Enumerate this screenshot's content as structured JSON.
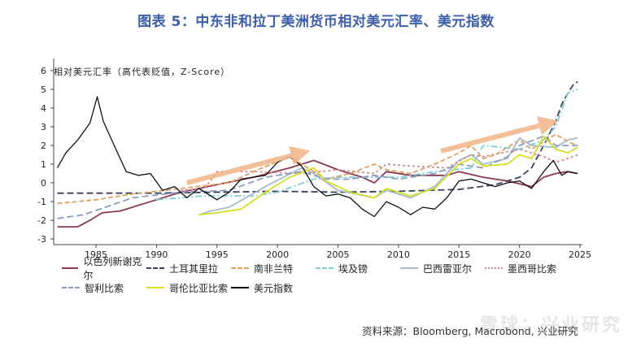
{
  "page": {
    "title": "图表 5：中东非和拉丁美洲货币相对美元汇率、美元指数",
    "source": "资料来源：Bloomberg, Macrobond, 兴业研究",
    "watermark": "雪球：兴业研究"
  },
  "chart_data": {
    "type": "line",
    "title": "图表 5：中东非和拉丁美洲货币相对美元汇率、美元指数",
    "ylabel": "相对美元汇率（高代表贬值，Z-Score）",
    "xlabel": "",
    "xlim": [
      1981.5,
      2025.2
    ],
    "ylim": [
      -3.3,
      6.3
    ],
    "xticks": [
      1985,
      1990,
      1995,
      2000,
      2005,
      2010,
      2015,
      2020,
      2025
    ],
    "yticks": [
      -3,
      -2,
      -1,
      0,
      1,
      2,
      3,
      4,
      5,
      6
    ],
    "legend_position": "bottom",
    "grid": false,
    "series": [
      {
        "name": "以色列新谢克尔",
        "color": "#8b3a52",
        "dash": "solid",
        "points": [
          [
            1981.8,
            -2.35
          ],
          [
            1983.5,
            -2.35
          ],
          [
            1984.5,
            -2.0
          ],
          [
            1985.5,
            -1.6
          ],
          [
            1987,
            -1.5
          ],
          [
            1990,
            -0.9
          ],
          [
            1992,
            -0.5
          ],
          [
            1995,
            -0.1
          ],
          [
            1998,
            0.3
          ],
          [
            2001,
            0.8
          ],
          [
            2003,
            1.2
          ],
          [
            2005,
            0.7
          ],
          [
            2007,
            0.3
          ],
          [
            2008,
            0.0
          ],
          [
            2009,
            0.6
          ],
          [
            2011,
            0.4
          ],
          [
            2014,
            0.4
          ],
          [
            2015,
            0.6
          ],
          [
            2017,
            0.3
          ],
          [
            2019,
            0.1
          ],
          [
            2021,
            -0.2
          ],
          [
            2022,
            0.3
          ],
          [
            2023,
            0.5
          ],
          [
            2024,
            0.6
          ],
          [
            2024.8,
            0.5
          ]
        ]
      },
      {
        "name": "土耳其里拉",
        "color": "#3a3f5c",
        "dash": "8,4",
        "points": [
          [
            1981.8,
            -0.55
          ],
          [
            1990,
            -0.55
          ],
          [
            1995,
            -0.5
          ],
          [
            2000,
            -0.45
          ],
          [
            2005,
            -0.5
          ],
          [
            2010,
            -0.45
          ],
          [
            2015,
            -0.35
          ],
          [
            2018,
            -0.1
          ],
          [
            2020,
            0.3
          ],
          [
            2021,
            0.8
          ],
          [
            2022,
            2.0
          ],
          [
            2023,
            3.3
          ],
          [
            2023.5,
            4.2
          ],
          [
            2024,
            4.8
          ],
          [
            2024.5,
            5.3
          ],
          [
            2024.8,
            5.4
          ]
        ]
      },
      {
        "name": "南非兰特",
        "color": "#e0a060",
        "dash": "6,3",
        "points": [
          [
            1981.8,
            -1.1
          ],
          [
            1985,
            -0.9
          ],
          [
            1988,
            -0.6
          ],
          [
            1992,
            -0.3
          ],
          [
            1996,
            0.0
          ],
          [
            1998,
            0.6
          ],
          [
            2001,
            1.4
          ],
          [
            2002,
            1.0
          ],
          [
            2004,
            0.2
          ],
          [
            2006,
            0.5
          ],
          [
            2008,
            1.0
          ],
          [
            2009,
            0.7
          ],
          [
            2011,
            0.5
          ],
          [
            2013,
            1.0
          ],
          [
            2015,
            1.6
          ],
          [
            2016,
            2.0
          ],
          [
            2017,
            1.3
          ],
          [
            2018,
            1.5
          ],
          [
            2020,
            2.3
          ],
          [
            2021,
            1.8
          ],
          [
            2023,
            2.6
          ],
          [
            2024,
            2.2
          ],
          [
            2024.8,
            2.0
          ]
        ]
      },
      {
        "name": "埃及镑",
        "color": "#7fcfd6",
        "dash": "8,3,2,3",
        "points": [
          [
            1990,
            -0.9
          ],
          [
            1994,
            -0.7
          ],
          [
            1998,
            -0.7
          ],
          [
            2000,
            -0.5
          ],
          [
            2003,
            0.2
          ],
          [
            2005,
            0.3
          ],
          [
            2010,
            0.3
          ],
          [
            2013,
            0.6
          ],
          [
            2016,
            0.8
          ],
          [
            2017,
            2.0
          ],
          [
            2020,
            1.8
          ],
          [
            2022,
            2.3
          ],
          [
            2023,
            3.0
          ],
          [
            2024,
            4.8
          ],
          [
            2024.8,
            5.0
          ]
        ]
      },
      {
        "name": "巴西雷亚尔",
        "color": "#a6bccc",
        "dash": "solid",
        "points": [
          [
            1993.5,
            -1.7
          ],
          [
            1994.5,
            -1.5
          ],
          [
            1996,
            -1.3
          ],
          [
            1999,
            -0.2
          ],
          [
            2002,
            0.8
          ],
          [
            2003,
            0.5
          ],
          [
            2005,
            -0.4
          ],
          [
            2008,
            -0.8
          ],
          [
            2009,
            -0.4
          ],
          [
            2011,
            -0.8
          ],
          [
            2013,
            -0.2
          ],
          [
            2015,
            1.2
          ],
          [
            2016,
            1.5
          ],
          [
            2017,
            1.0
          ],
          [
            2019,
            1.3
          ],
          [
            2020,
            2.4
          ],
          [
            2021,
            2.0
          ],
          [
            2023,
            1.9
          ],
          [
            2024,
            2.3
          ],
          [
            2024.8,
            2.4
          ]
        ]
      },
      {
        "name": "墨西哥比索",
        "color": "#d48c8c",
        "dash": "3,3",
        "points": [
          [
            1992,
            -0.4
          ],
          [
            1994,
            -0.3
          ],
          [
            1995,
            0.6
          ],
          [
            1998,
            0.6
          ],
          [
            2002,
            0.5
          ],
          [
            2005,
            0.7
          ],
          [
            2008,
            0.5
          ],
          [
            2009,
            1.0
          ],
          [
            2011,
            0.9
          ],
          [
            2014,
            0.8
          ],
          [
            2016,
            1.5
          ],
          [
            2017,
            1.4
          ],
          [
            2020,
            1.8
          ],
          [
            2022,
            1.4
          ],
          [
            2023,
            1.1
          ],
          [
            2024,
            1.3
          ],
          [
            2024.8,
            1.5
          ]
        ]
      },
      {
        "name": "智利比索",
        "color": "#8a9cc0",
        "dash": "8,4",
        "points": [
          [
            1981.8,
            -1.9
          ],
          [
            1984,
            -1.7
          ],
          [
            1988,
            -0.8
          ],
          [
            1992,
            -0.5
          ],
          [
            1996,
            -0.4
          ],
          [
            1999,
            0.3
          ],
          [
            2002,
            0.6
          ],
          [
            2004,
            0.2
          ],
          [
            2006,
            0.2
          ],
          [
            2008,
            0.4
          ],
          [
            2010,
            0.2
          ],
          [
            2013,
            0.5
          ],
          [
            2015,
            1.0
          ],
          [
            2017,
            0.8
          ],
          [
            2019,
            1.4
          ],
          [
            2020,
            2.0
          ],
          [
            2022,
            2.5
          ],
          [
            2023,
            2.0
          ],
          [
            2024,
            2.0
          ],
          [
            2024.8,
            2.0
          ]
        ]
      },
      {
        "name": "哥伦比亚比索",
        "color": "#d4e025",
        "dash": "solid",
        "points": [
          [
            1993.5,
            -1.7
          ],
          [
            1995,
            -1.6
          ],
          [
            1997,
            -1.4
          ],
          [
            1999,
            -0.5
          ],
          [
            2001,
            0.3
          ],
          [
            2003,
            0.8
          ],
          [
            2004,
            0.1
          ],
          [
            2006,
            -0.5
          ],
          [
            2008,
            -0.8
          ],
          [
            2009,
            -0.3
          ],
          [
            2011,
            -0.7
          ],
          [
            2013,
            -0.3
          ],
          [
            2015,
            1.0
          ],
          [
            2016,
            1.3
          ],
          [
            2017,
            0.9
          ],
          [
            2019,
            1.0
          ],
          [
            2020,
            1.5
          ],
          [
            2021,
            1.3
          ],
          [
            2022,
            2.5
          ],
          [
            2023,
            1.8
          ],
          [
            2024,
            1.6
          ],
          [
            2024.8,
            1.9
          ]
        ]
      },
      {
        "name": "美元指数",
        "color": "#111111",
        "dash": "solid",
        "points": [
          [
            1981.8,
            0.8
          ],
          [
            1982.5,
            1.6
          ],
          [
            1983.5,
            2.3
          ],
          [
            1984.5,
            3.2
          ],
          [
            1985.1,
            4.6
          ],
          [
            1985.6,
            3.3
          ],
          [
            1986.5,
            2.0
          ],
          [
            1987.5,
            0.6
          ],
          [
            1988.5,
            0.4
          ],
          [
            1989.5,
            0.5
          ],
          [
            1990.5,
            -0.4
          ],
          [
            1991.5,
            -0.2
          ],
          [
            1992.5,
            -0.8
          ],
          [
            1993.5,
            -0.3
          ],
          [
            1995,
            -0.9
          ],
          [
            1996,
            -0.5
          ],
          [
            1997,
            0.2
          ],
          [
            1998,
            0.3
          ],
          [
            1999,
            0.4
          ],
          [
            2000,
            1.1
          ],
          [
            2001,
            1.4
          ],
          [
            2002,
            0.9
          ],
          [
            2003,
            -0.2
          ],
          [
            2004,
            -0.7
          ],
          [
            2005,
            -0.6
          ],
          [
            2006,
            -0.8
          ],
          [
            2007,
            -1.4
          ],
          [
            2008,
            -1.8
          ],
          [
            2009,
            -1.0
          ],
          [
            2010,
            -1.3
          ],
          [
            2011,
            -1.7
          ],
          [
            2012,
            -1.3
          ],
          [
            2013,
            -1.4
          ],
          [
            2014,
            -0.8
          ],
          [
            2015,
            0.1
          ],
          [
            2016,
            0.2
          ],
          [
            2017,
            0.0
          ],
          [
            2018,
            -0.2
          ],
          [
            2019,
            0.0
          ],
          [
            2020,
            0.1
          ],
          [
            2021,
            -0.3
          ],
          [
            2022,
            0.6
          ],
          [
            2022.8,
            1.2
          ],
          [
            2023.5,
            0.4
          ],
          [
            2024,
            0.6
          ],
          [
            2024.8,
            0.5
          ]
        ]
      }
    ],
    "annotations": [
      {
        "type": "arrow",
        "color": "#f2b98f",
        "from": [
          1992.5,
          0.0
        ],
        "to": [
          2002.0,
          1.6
        ]
      },
      {
        "type": "arrow",
        "color": "#f2b98f",
        "from": [
          2013.5,
          1.7
        ],
        "to": [
          2022.5,
          3.2
        ]
      }
    ]
  }
}
